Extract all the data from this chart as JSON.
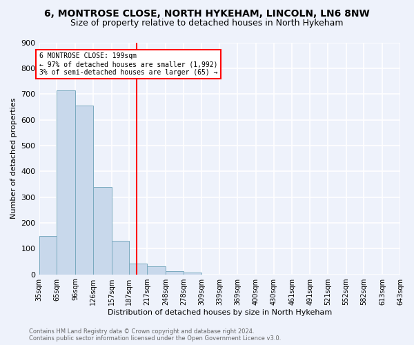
{
  "title": "6, MONTROSE CLOSE, NORTH HYKEHAM, LINCOLN, LN6 8NW",
  "subtitle": "Size of property relative to detached houses in North Hykeham",
  "xlabel": "Distribution of detached houses by size in North Hykeham",
  "ylabel": "Number of detached properties",
  "footer_line1": "Contains HM Land Registry data © Crown copyright and database right 2024.",
  "footer_line2": "Contains public sector information licensed under the Open Government Licence v3.0.",
  "bin_labels": [
    "35sqm",
    "65sqm",
    "96sqm",
    "126sqm",
    "157sqm",
    "187sqm",
    "217sqm",
    "248sqm",
    "278sqm",
    "309sqm",
    "339sqm",
    "369sqm",
    "400sqm",
    "430sqm",
    "461sqm",
    "491sqm",
    "521sqm",
    "552sqm",
    "582sqm",
    "613sqm",
    "643sqm"
  ],
  "bar_heights": [
    150,
    715,
    655,
    340,
    130,
    43,
    30,
    13,
    8,
    0,
    0,
    0,
    0,
    0,
    0,
    0,
    0,
    0,
    0,
    0
  ],
  "bar_color": "#c8d8eb",
  "bar_edge_color": "#7aaabf",
  "vline_x": 199,
  "vline_color": "red",
  "annotation_text": "6 MONTROSE CLOSE: 199sqm\n← 97% of detached houses are smaller (1,992)\n3% of semi-detached houses are larger (65) →",
  "annotation_box_color": "white",
  "annotation_box_edge": "red",
  "ylim": [
    0,
    900
  ],
  "yticks": [
    0,
    100,
    200,
    300,
    400,
    500,
    600,
    700,
    800,
    900
  ],
  "bg_color": "#eef2fb",
  "plot_bg_color": "#eef2fb",
  "grid_color": "white",
  "title_fontsize": 10,
  "subtitle_fontsize": 9,
  "bin_edges": [
    35,
    65,
    96,
    126,
    157,
    187,
    217,
    248,
    278,
    309,
    339,
    369,
    400,
    430,
    461,
    491,
    521,
    552,
    582,
    613,
    643
  ]
}
